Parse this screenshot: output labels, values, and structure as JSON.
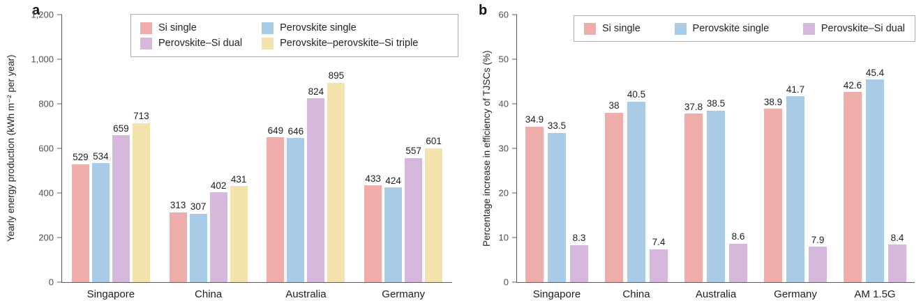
{
  "chart_data": [
    {
      "type": "bar",
      "panel_label": "a",
      "title": "",
      "xlabel": "",
      "ylabel": "Yearly energy production (kWh m⁻² per year)",
      "ylim": [
        0,
        1200
      ],
      "grid": false,
      "legend_position": "top",
      "yticks": [
        {
          "value": 0,
          "label": "0"
        },
        {
          "value": 200,
          "label": "200"
        },
        {
          "value": 400,
          "label": "400"
        },
        {
          "value": 600,
          "label": "600"
        },
        {
          "value": 800,
          "label": "800"
        },
        {
          "value": 1000,
          "label": "1,000"
        },
        {
          "value": 1200,
          "label": "1,200"
        }
      ],
      "categories": [
        "Singapore",
        "China",
        "Australia",
        "Germany"
      ],
      "series": [
        {
          "name": "Si single",
          "color": "#EEADAB",
          "values": [
            529,
            313,
            649,
            433
          ]
        },
        {
          "name": "Perovskite single",
          "color": "#A8CCE8",
          "values": [
            534,
            307,
            646,
            424
          ]
        },
        {
          "name": "Perovskite–Si dual",
          "color": "#D5B8DB",
          "values": [
            659,
            402,
            824,
            557
          ]
        },
        {
          "name": "Perovskite–perovskite–Si triple",
          "color": "#F3E2AC",
          "values": [
            713,
            431,
            895,
            601
          ]
        }
      ]
    },
    {
      "type": "bar",
      "panel_label": "b",
      "title": "",
      "xlabel": "",
      "ylabel": "Percentage increase in efficiency of TJSCs (%)",
      "ylim": [
        0,
        60
      ],
      "grid": false,
      "legend_position": "top",
      "yticks": [
        {
          "value": 0,
          "label": "0"
        },
        {
          "value": 10,
          "label": "10"
        },
        {
          "value": 20,
          "label": "20"
        },
        {
          "value": 30,
          "label": "30"
        },
        {
          "value": 40,
          "label": "40"
        },
        {
          "value": 50,
          "label": "50"
        },
        {
          "value": 60,
          "label": "60"
        }
      ],
      "categories": [
        "Singapore",
        "China",
        "Australia",
        "Germany",
        "AM 1.5G"
      ],
      "series": [
        {
          "name": "Si single",
          "color": "#EEADAB",
          "values": [
            34.9,
            38,
            37.8,
            38.9,
            42.6
          ]
        },
        {
          "name": "Perovskite single",
          "color": "#A8CCE8",
          "values": [
            33.5,
            40.5,
            38.5,
            41.7,
            45.4
          ]
        },
        {
          "name": "Perovskite–Si dual",
          "color": "#D5B8DB",
          "values": [
            8.3,
            7.4,
            8.6,
            7.9,
            8.4
          ]
        }
      ]
    }
  ]
}
